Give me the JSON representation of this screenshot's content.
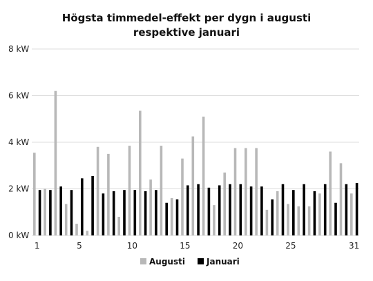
{
  "chart_data": {
    "type": "bar",
    "title_line1": "Högsta timmedel-effekt per dygn i augusti",
    "title_line2": "respektive januari",
    "xlabel": "",
    "ylabel": "",
    "categories": [
      1,
      2,
      3,
      4,
      5,
      6,
      7,
      8,
      9,
      10,
      11,
      12,
      13,
      14,
      15,
      16,
      17,
      18,
      19,
      20,
      21,
      22,
      23,
      24,
      25,
      26,
      27,
      28,
      29,
      30,
      31
    ],
    "x_tick_labels": [
      {
        "day": 1,
        "label": "1"
      },
      {
        "day": 5,
        "label": "5"
      },
      {
        "day": 10,
        "label": "10"
      },
      {
        "day": 15,
        "label": "15"
      },
      {
        "day": 20,
        "label": "20"
      },
      {
        "day": 25,
        "label": "25"
      },
      {
        "day": 31,
        "label": "31"
      }
    ],
    "y_ticks": [
      {
        "value": 0,
        "label": "0 kW"
      },
      {
        "value": 2,
        "label": "2 kW"
      },
      {
        "value": 4,
        "label": "4 kW"
      },
      {
        "value": 6,
        "label": "6 kW"
      },
      {
        "value": 8,
        "label": "8 kW"
      }
    ],
    "ylim": [
      0,
      8
    ],
    "grid": true,
    "legend_position": "bottom",
    "series": [
      {
        "name": "Augusti",
        "color": "#b8b8b8",
        "values": [
          3.55,
          2.0,
          6.2,
          1.35,
          0.5,
          0.2,
          3.8,
          3.5,
          0.8,
          3.85,
          5.35,
          2.4,
          3.85,
          1.6,
          3.3,
          4.25,
          5.1,
          1.3,
          2.7,
          3.75,
          3.75,
          3.75,
          1.1,
          1.9,
          1.35,
          1.25,
          1.25,
          1.8,
          3.6,
          3.1,
          1.8
        ]
      },
      {
        "name": "Januari",
        "color": "#000000",
        "values": [
          1.95,
          1.95,
          2.1,
          1.95,
          2.45,
          2.55,
          1.8,
          1.9,
          1.95,
          1.95,
          1.9,
          1.95,
          1.4,
          1.55,
          2.15,
          2.2,
          2.05,
          2.15,
          2.2,
          2.2,
          2.1,
          2.1,
          1.55,
          2.2,
          1.95,
          2.2,
          1.9,
          2.2,
          1.4,
          2.2,
          2.25
        ]
      }
    ]
  }
}
